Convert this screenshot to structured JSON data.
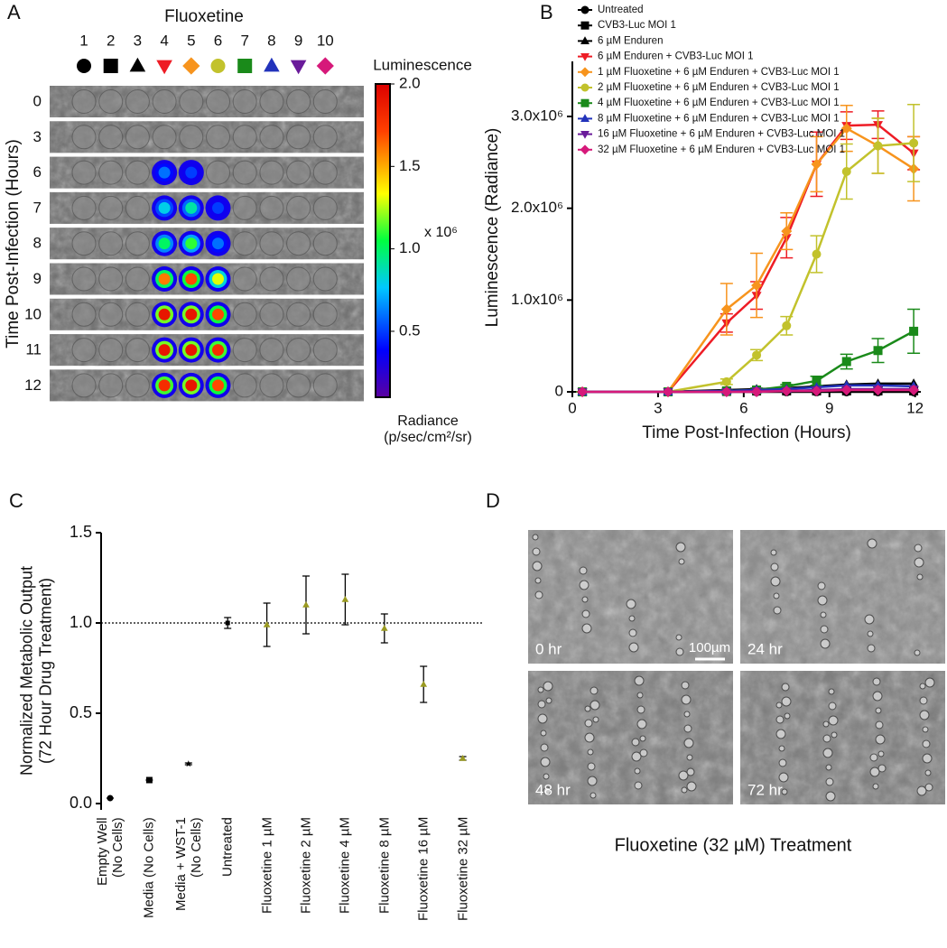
{
  "chart_data": [
    {
      "type": "image-grid",
      "panel_label": "A",
      "title": "Fluoxetine",
      "ylabel": "Time Post-Infection (Hours)",
      "columns": [
        "1",
        "2",
        "3",
        "4",
        "5",
        "6",
        "7",
        "8",
        "9",
        "10"
      ],
      "column_markers": [
        {
          "shape": "circle",
          "color": "#000000"
        },
        {
          "shape": "square",
          "color": "#000000"
        },
        {
          "shape": "triangle",
          "color": "#000000"
        },
        {
          "shape": "triangle-down",
          "color": "#ee1c25"
        },
        {
          "shape": "diamond",
          "color": "#f7941d"
        },
        {
          "shape": "circle",
          "color": "#c2c22c"
        },
        {
          "shape": "square",
          "color": "#1a8a1a"
        },
        {
          "shape": "triangle",
          "color": "#2233bb"
        },
        {
          "shape": "triangle-down",
          "color": "#6a1b9a"
        },
        {
          "shape": "diamond",
          "color": "#d6197a"
        }
      ],
      "rows": [
        "0",
        "3",
        "6",
        "7",
        "8",
        "9",
        "10",
        "11",
        "12"
      ],
      "values": [
        [
          0,
          0,
          0,
          0,
          0,
          0,
          0,
          0,
          0,
          0
        ],
        [
          0,
          0,
          0,
          0,
          0,
          0,
          0,
          0,
          0,
          0
        ],
        [
          0,
          0,
          0,
          0.6,
          0.5,
          0,
          0,
          0,
          0,
          0
        ],
        [
          0,
          0,
          0,
          0.8,
          0.9,
          0.5,
          0,
          0,
          0,
          0
        ],
        [
          0,
          0,
          0,
          1.0,
          1.1,
          0.6,
          0,
          0,
          0,
          0
        ],
        [
          0,
          0,
          0,
          1.6,
          1.7,
          1.3,
          0,
          0,
          0,
          0
        ],
        [
          0,
          0,
          0,
          1.9,
          1.9,
          1.7,
          0,
          0,
          0,
          0
        ],
        [
          0,
          0,
          0,
          1.9,
          1.9,
          1.8,
          0,
          0,
          0,
          0
        ],
        [
          0,
          0,
          0,
          1.8,
          1.9,
          1.7,
          0,
          0,
          0,
          0
        ]
      ],
      "colorbar": {
        "title": "Luminescence",
        "lim": [
          0.1,
          2.0
        ],
        "ticks": [
          {
            "value": 2,
            "label": "2.0"
          },
          1.5,
          {
            "value": 1,
            "label": "1.0"
          },
          0.5
        ],
        "multiplier": "x 10⁶",
        "label": "Radiance\n(p/sec/cm²/sr)"
      }
    },
    {
      "type": "line",
      "panel_label": "B",
      "xlabel": "Time Post-Infection (Hours)",
      "ylabel": "Luminescence (Radiance)",
      "x": [
        0.35,
        3.35,
        5.4,
        6.45,
        7.5,
        8.55,
        9.6,
        10.7,
        11.95
      ],
      "xlim": [
        0,
        12.2
      ],
      "xticks": [
        0,
        3,
        6,
        9,
        12
      ],
      "ylim": [
        0,
        3600000
      ],
      "yticks": [
        0,
        {
          "value": 1000000,
          "label": "1.0x10⁶"
        },
        {
          "value": 2000000,
          "label": "2.0x10⁶"
        },
        {
          "value": 3000000,
          "label": "3.0x10⁶"
        }
      ],
      "series": [
        {
          "name": "Untreated",
          "color": "#000000",
          "marker": "circle",
          "values": [
            0,
            0,
            0,
            0,
            0,
            0,
            0,
            0,
            0
          ]
        },
        {
          "name": "CVB3-Luc MOI 1",
          "color": "#000000",
          "marker": "square",
          "values": [
            0,
            0,
            5000,
            10000,
            10000,
            10000,
            10000,
            10000,
            10000
          ]
        },
        {
          "name": "6 µM Enduren",
          "color": "#000000",
          "marker": "triangle",
          "values": [
            0,
            0,
            20000,
            30000,
            40000,
            60000,
            80000,
            90000,
            90000
          ]
        },
        {
          "name": "6 µM Enduren + CVB3-Luc MOI 1",
          "color": "#ee1c25",
          "marker": "triangle-down",
          "values": [
            0,
            0,
            750000,
            1050000,
            1680000,
            2480000,
            2900000,
            2910000,
            2600000
          ],
          "errors": [
            0,
            0,
            100000,
            150000,
            220000,
            350000,
            150000,
            150000,
            180000
          ]
        },
        {
          "name": "1 µM Fluoxetine + 6 µM Enduren + CVB3-Luc MOI 1",
          "color": "#f7941d",
          "marker": "diamond",
          "values": [
            0,
            0,
            900000,
            1160000,
            1750000,
            2480000,
            2870000,
            2680000,
            2430000
          ],
          "errors": [
            0,
            0,
            280000,
            350000,
            200000,
            300000,
            250000,
            300000,
            350000
          ]
        },
        {
          "name": "2 µM Fluoxetine + 6 µM Enduren + CVB3-Luc MOI 1",
          "color": "#c2c22c",
          "marker": "circle",
          "values": [
            0,
            0,
            110000,
            400000,
            720000,
            1500000,
            2400000,
            2680000,
            2710000
          ],
          "errors": [
            0,
            0,
            30000,
            60000,
            100000,
            200000,
            300000,
            300000,
            420000
          ]
        },
        {
          "name": "4 µM Fluoxetine + 6 µM Enduren + CVB3-Luc MOI 1",
          "color": "#1a8a1a",
          "marker": "square",
          "values": [
            0,
            0,
            10000,
            20000,
            60000,
            120000,
            330000,
            450000,
            660000
          ],
          "errors": [
            0,
            0,
            10000,
            20000,
            20000,
            50000,
            80000,
            130000,
            240000
          ]
        },
        {
          "name": "8 µM Fluoxetine + 6 µM Enduren + CVB3-Luc MOI 1",
          "color": "#2233bb",
          "marker": "triangle",
          "values": [
            0,
            0,
            10000,
            20000,
            30000,
            50000,
            70000,
            70000,
            60000
          ]
        },
        {
          "name": "16 µM Fluoxetine + 6 µM Enduren + CVB3-Luc MOI 1",
          "color": "#6a1b9a",
          "marker": "triangle-down",
          "values": [
            0,
            0,
            0,
            10000,
            10000,
            20000,
            30000,
            30000,
            30000
          ]
        },
        {
          "name": "32 µM Fluoxetine + 6 µM Enduren + CVB3-Luc MOI 1",
          "color": "#d6197a",
          "marker": "diamond",
          "values": [
            0,
            0,
            0,
            0,
            10000,
            10000,
            20000,
            20000,
            20000
          ]
        }
      ]
    },
    {
      "type": "dot",
      "panel_label": "C",
      "ylabel": "Normalized Metabolic Output\n(72 Hour Drug Treatment)",
      "categories": [
        "Empty Well\n(No Cells)",
        "Media (No Cells)",
        "Media + WST-1\n(No Cells)",
        "Untreated",
        "Fluoxetine 1 µM",
        "Fluoxetine 2 µM",
        "Fluoxetine 4 µM",
        "Fluoxetine 8 µM",
        "Fluoxetine 16 µM",
        "Fluoxetine 32 µM"
      ],
      "values": [
        0.03,
        0.13,
        0.22,
        1.0,
        0.99,
        1.1,
        1.13,
        0.97,
        0.66,
        0.25
      ],
      "errors": [
        0,
        0,
        0.005,
        0.03,
        0.12,
        0.16,
        0.14,
        0.08,
        0.1,
        0.01
      ],
      "markers": [
        "circle",
        "square",
        "star",
        "square",
        "triangle",
        "triangle",
        "triangle",
        "triangle",
        "triangle",
        "triangle"
      ],
      "colors": [
        "#000000",
        "#000000",
        "#000000",
        "#000000",
        "#9a9a20",
        "#9a9a20",
        "#9a9a20",
        "#9a9a20",
        "#9a9a20",
        "#9a9a20"
      ],
      "ylim": [
        -0.035,
        1.5
      ],
      "yticks": [
        {
          "value": 0,
          "label": "0.0"
        },
        0.5,
        {
          "value": 1,
          "label": "1.0"
        },
        1.5
      ],
      "hline": 1
    },
    {
      "type": "image-panel",
      "panel_label": "D",
      "panels": [
        "0 hr",
        "24 hr",
        "48 hr",
        "72 hr"
      ],
      "scale_bar": "100µm",
      "caption": "Fluoxetine (32 µM) Treatment"
    }
  ]
}
